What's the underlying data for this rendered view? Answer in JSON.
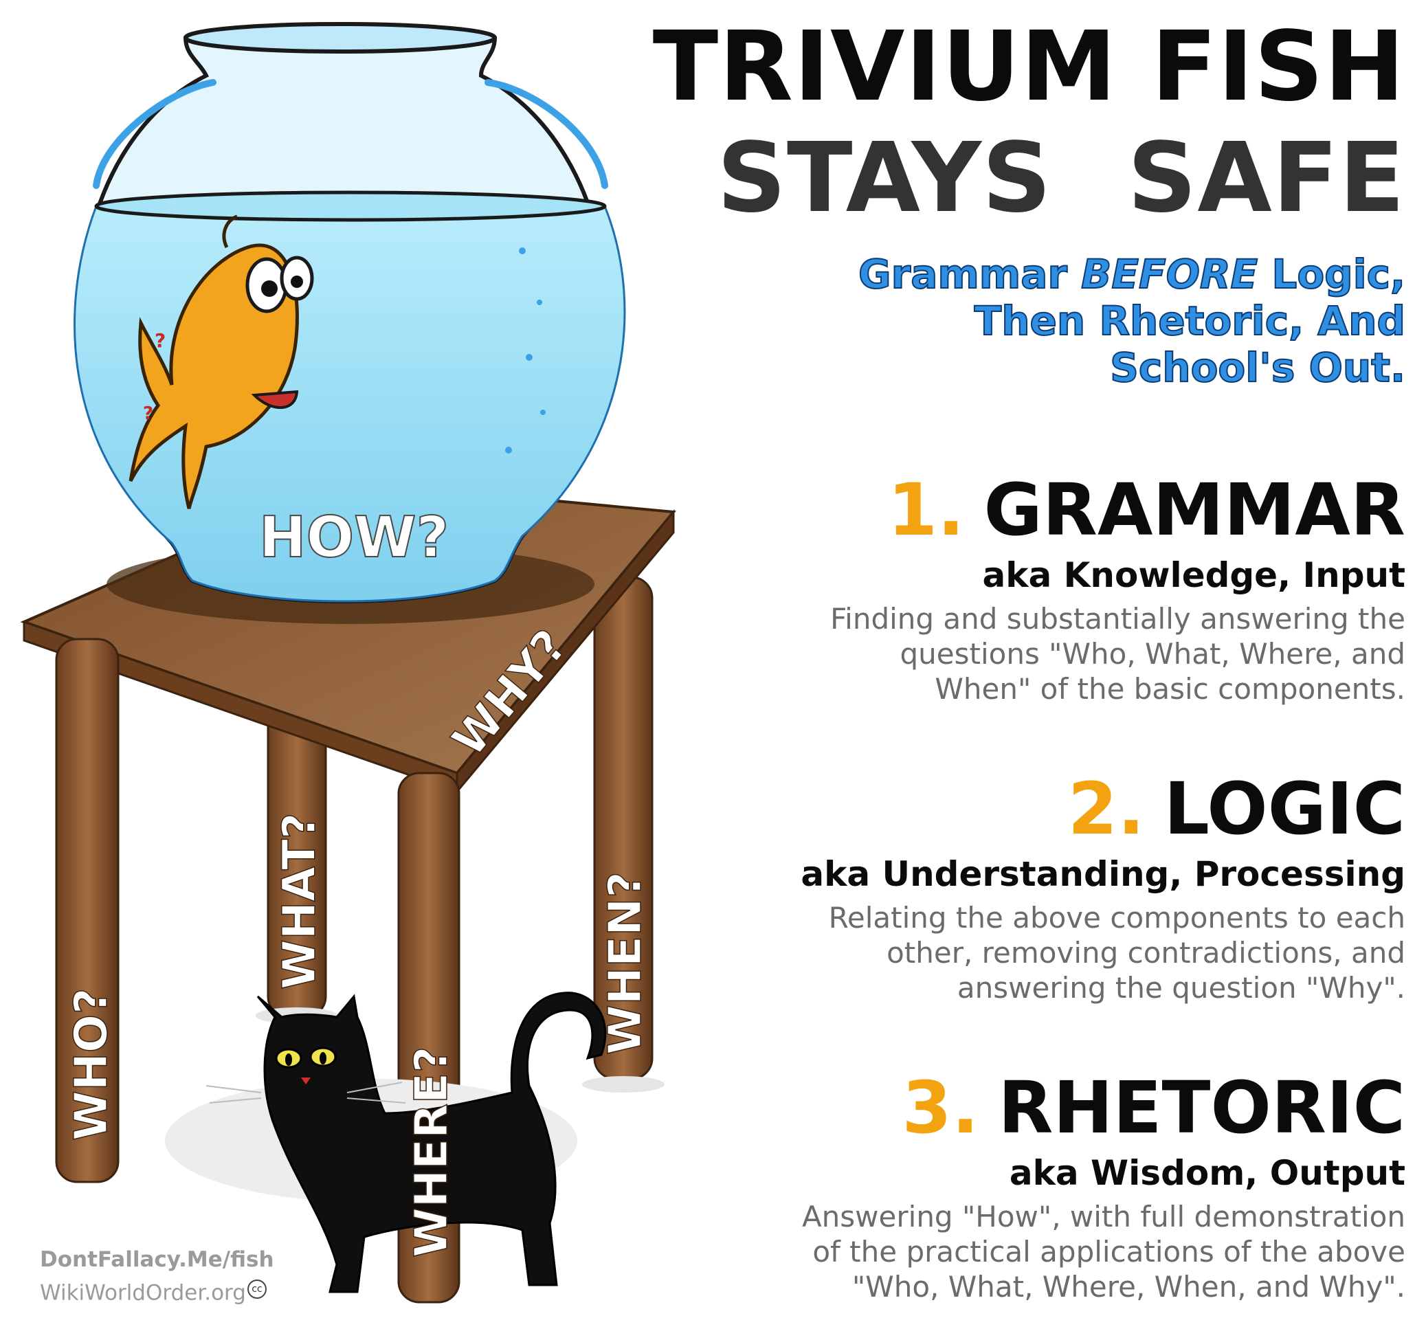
{
  "title": {
    "line1": "TRIVIUM FISH",
    "line2": "STAYS SAFE"
  },
  "subtitle": {
    "part1": "Grammar ",
    "emphasis": "BEFORE",
    "part2": " Logic,",
    "line2": "Then Rhetoric, And",
    "line3": "School's Out."
  },
  "sections": [
    {
      "number": "1.",
      "heading": "GRAMMAR",
      "aka": "aka Knowledge, Input",
      "desc": [
        "Finding and substantially answering the",
        "questions \"Who, What, Where, and",
        "When\" of the basic components."
      ]
    },
    {
      "number": "2.",
      "heading": "LOGIC",
      "aka": "aka Understanding, Processing",
      "desc": [
        "Relating the above components to each",
        "other, removing contradictions, and",
        "answering the question \"Why\"."
      ]
    },
    {
      "number": "3.",
      "heading": "RHETORIC",
      "aka": "aka Wisdom, Output",
      "desc": [
        "Answering \"How\", with full demonstration",
        "of the practical applications of the above",
        "\"Who, What, Where, When, and Why\"."
      ]
    }
  ],
  "illustration": {
    "bowl_label": "HOW?",
    "tabletop_label": "WHY?",
    "legs": [
      "WHO?",
      "WHAT?",
      "WHERE?",
      "WHEN?"
    ]
  },
  "credits": {
    "line1": "DontFallacy.Me/fish",
    "line2": "WikiWorldOrder.org",
    "cc": "cc"
  },
  "colors": {
    "accent_blue": "#2f8fe3",
    "number_orange": "#f3a310",
    "table_brown": "#8a5a34",
    "water": "#8fd9f5"
  }
}
